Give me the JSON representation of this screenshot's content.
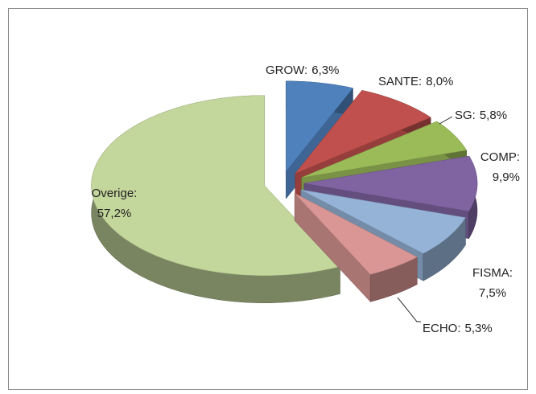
{
  "chart_data": {
    "type": "pie3d",
    "categories": [
      "GROW:",
      "SANTE:",
      "SG:",
      "COMP:",
      "FISMA:",
      "ECHO:",
      "Overige:"
    ],
    "values": [
      6.3,
      8.0,
      5.8,
      9.9,
      7.5,
      5.3,
      57.2
    ],
    "value_labels": [
      "6,3%",
      "8,0%",
      "5,8%",
      "9,9%",
      "7,5%",
      "5,3%",
      "57,2%"
    ],
    "colors": [
      "#4f81bd",
      "#c0504d",
      "#9bbb59",
      "#8064a2",
      "#95b3d7",
      "#d99694",
      "#c3d69b"
    ]
  }
}
